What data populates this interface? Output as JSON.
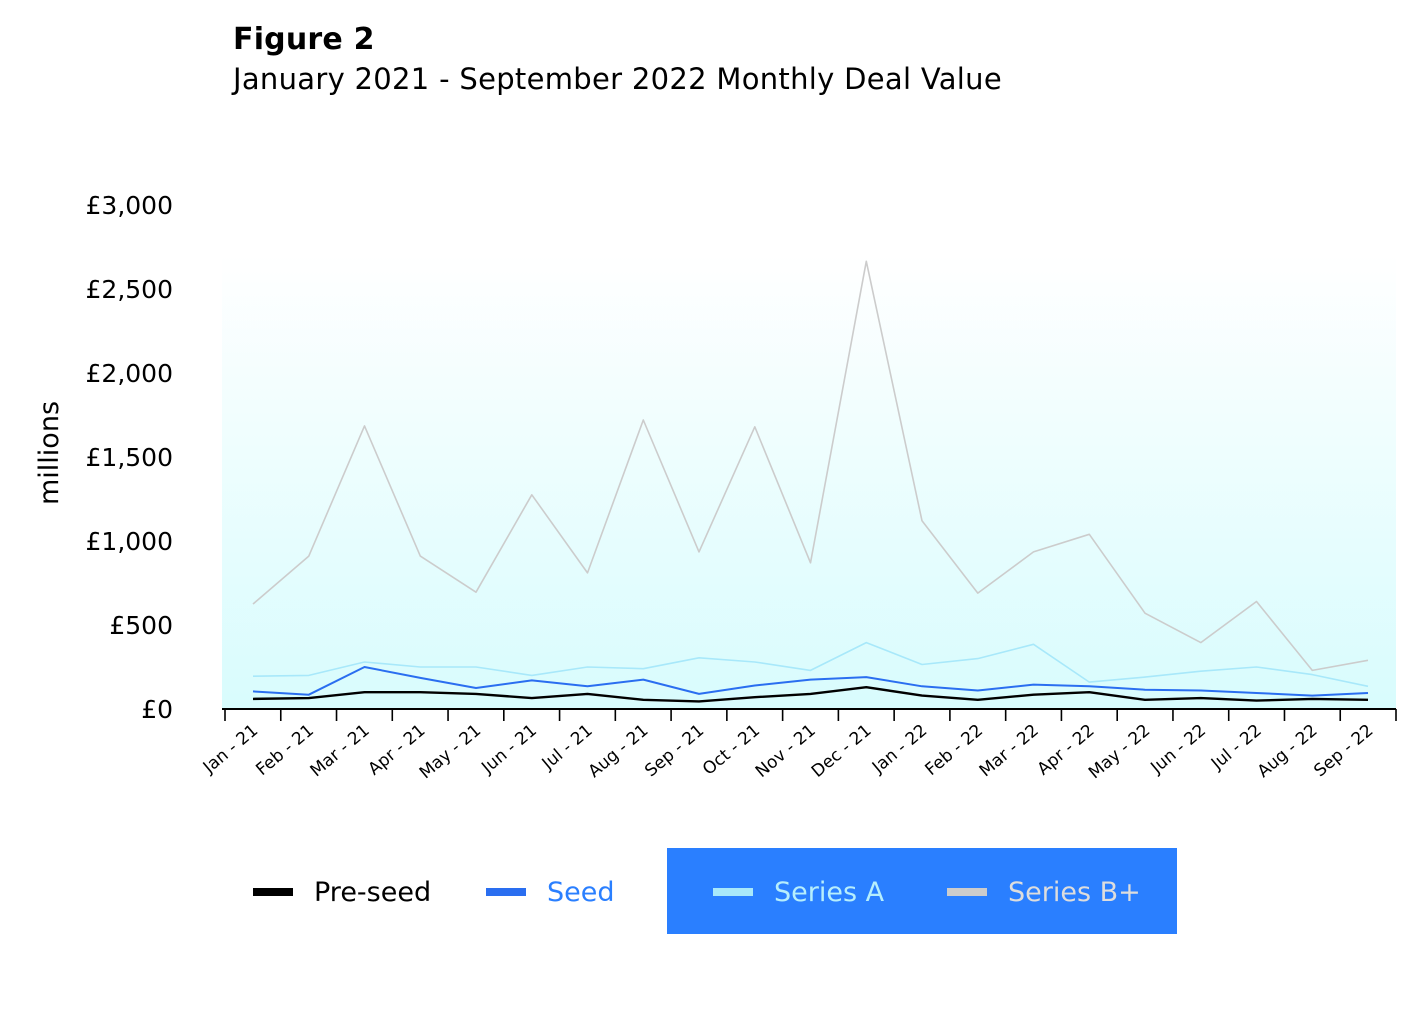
{
  "figure": {
    "title": "Figure 2",
    "subtitle": "January 2021 - September 2022 Monthly Deal Value"
  },
  "chart_data": {
    "type": "line",
    "x": [
      "Jan - 21",
      "Feb - 21",
      "Mar - 21",
      "Apr - 21",
      "May - 21",
      "Jun - 21",
      "Jul - 21",
      "Aug - 21",
      "Sep - 21",
      "Oct - 21",
      "Nov - 21",
      "Dec - 21",
      "Jan - 22",
      "Feb - 22",
      "Mar - 22",
      "Apr - 22",
      "May - 22",
      "Jun - 22",
      "Jul - 22",
      "Aug - 22",
      "Sep - 22"
    ],
    "ylabel": "millions",
    "ylim": [
      0,
      3000
    ],
    "yticks": [
      0,
      500,
      1000,
      1500,
      2000,
      2500,
      3000
    ],
    "ytick_labels": [
      "£0",
      "£500",
      "£1,000",
      "£1,500",
      "£2,000",
      "£2,500",
      "£3,000"
    ],
    "grid": false,
    "legend_position": "bottom",
    "background_gradient": [
      "#ffffff",
      "#d8fcfd"
    ],
    "series": [
      {
        "name": "Pre-seed",
        "color": "#000000",
        "values": [
          60,
          65,
          100,
          100,
          90,
          65,
          90,
          55,
          45,
          70,
          90,
          130,
          80,
          55,
          85,
          100,
          55,
          65,
          50,
          60,
          55
        ]
      },
      {
        "name": "Seed",
        "color": "#2a6ef0",
        "values": [
          105,
          85,
          250,
          185,
          125,
          170,
          135,
          175,
          90,
          140,
          175,
          190,
          135,
          110,
          145,
          135,
          115,
          110,
          95,
          80,
          95
        ]
      },
      {
        "name": "Series A",
        "color": "#a8e8fa",
        "values": [
          195,
          200,
          280,
          250,
          250,
          200,
          250,
          240,
          305,
          280,
          230,
          395,
          265,
          300,
          385,
          160,
          190,
          225,
          250,
          205,
          135
        ]
      },
      {
        "name": "Series B+",
        "color": "#cccccc",
        "values": [
          625,
          910,
          1685,
          910,
          695,
          1275,
          810,
          1720,
          935,
          1680,
          870,
          2665,
          1120,
          690,
          935,
          1040,
          570,
          395,
          640,
          230,
          290
        ]
      }
    ]
  }
}
